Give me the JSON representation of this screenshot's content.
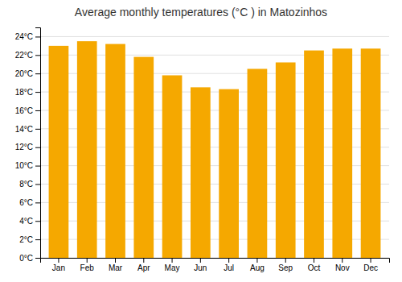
{
  "chart_data": {
    "type": "bar",
    "title": "Average monthly temperatures (°C ) in Matozinhos",
    "categories": [
      "Jan",
      "Feb",
      "Mar",
      "Apr",
      "May",
      "Jun",
      "Jul",
      "Aug",
      "Sep",
      "Oct",
      "Nov",
      "Dec"
    ],
    "values": [
      23.0,
      23.5,
      23.2,
      21.8,
      19.8,
      18.5,
      18.3,
      20.5,
      21.2,
      22.5,
      22.7,
      22.7
    ],
    "color": "#F5A800",
    "ylim": [
      0,
      25
    ],
    "yticks": [
      {
        "value": 0,
        "label": "0°C"
      },
      {
        "value": 2,
        "label": "2°C"
      },
      {
        "value": 4,
        "label": "4°C"
      },
      {
        "value": 6,
        "label": "6°C"
      },
      {
        "value": 8,
        "label": "8°C"
      },
      {
        "value": 10,
        "label": "10°C"
      },
      {
        "value": 12,
        "label": "12°C"
      },
      {
        "value": 14,
        "label": "14°C"
      },
      {
        "value": 16,
        "label": "16°C"
      },
      {
        "value": 18,
        "label": "18°C"
      },
      {
        "value": 20,
        "label": "20°C"
      },
      {
        "value": 22,
        "label": "22°C"
      },
      {
        "value": 24,
        "label": "24°C"
      }
    ],
    "grid": true
  }
}
